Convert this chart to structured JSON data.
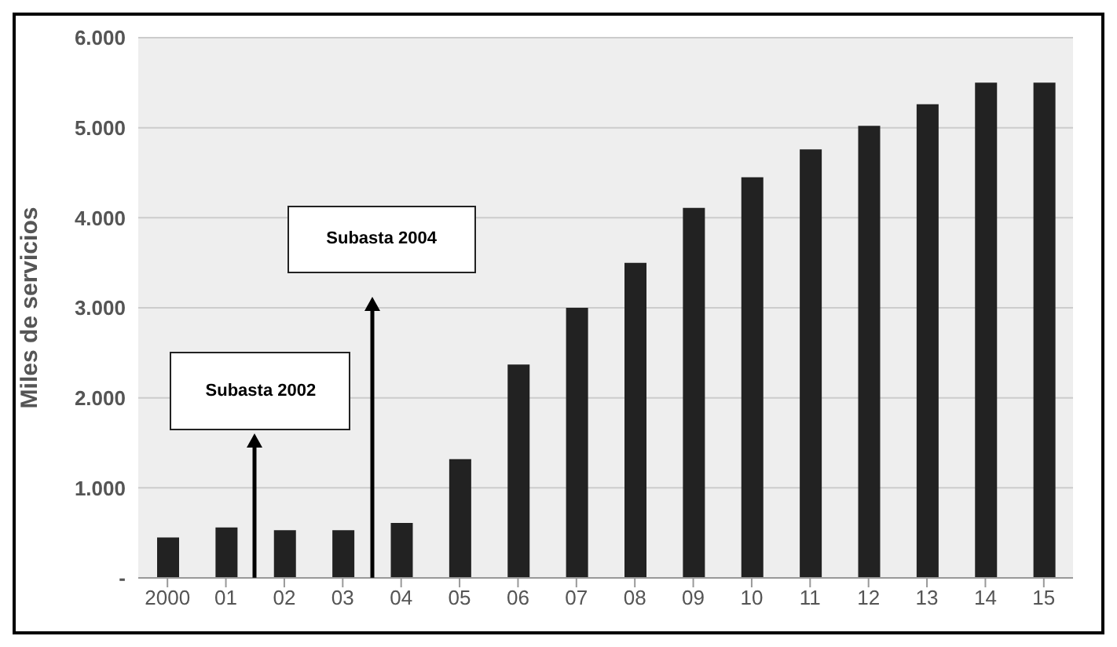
{
  "chart_data": {
    "type": "bar",
    "ylabel": "Miles de servicios",
    "categories": [
      "2000",
      "01",
      "02",
      "03",
      "04",
      "05",
      "06",
      "07",
      "08",
      "09",
      "10",
      "11",
      "12",
      "13",
      "14",
      "15"
    ],
    "values": [
      450,
      560,
      530,
      530,
      610,
      1320,
      2370,
      3000,
      3500,
      4110,
      4450,
      4760,
      5020,
      5260,
      5500,
      5500
    ],
    "color": "#222222",
    "ylim": [
      0,
      6000
    ],
    "yticks": [
      {
        "value": 0,
        "label": "-"
      },
      {
        "value": 1000,
        "label": "1.000"
      },
      {
        "value": 2000,
        "label": "2.000"
      },
      {
        "value": 3000,
        "label": "3.000"
      },
      {
        "value": 4000,
        "label": "4.000"
      },
      {
        "value": 5000,
        "label": "5.000"
      },
      {
        "value": 6000,
        "label": "6.000"
      }
    ],
    "grid": "y",
    "annotations": [
      "Subasta 2002",
      "Subasta 2004"
    ]
  }
}
